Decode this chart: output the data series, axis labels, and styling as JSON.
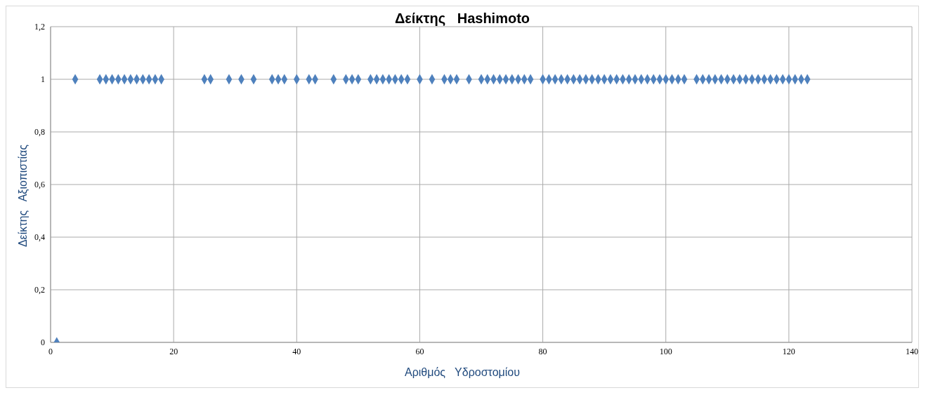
{
  "chart_data": {
    "type": "scatter",
    "title": "Δείκτης   Hashimoto",
    "xlabel": "Αριθμός   Υδροστομίου",
    "ylabel": "Δείκτης   Αξιοπιστίας",
    "x": [
      1,
      4,
      8,
      9,
      10,
      11,
      12,
      13,
      14,
      15,
      16,
      17,
      18,
      25,
      26,
      29,
      31,
      33,
      36,
      37,
      38,
      40,
      42,
      43,
      46,
      48,
      49,
      50,
      52,
      53,
      54,
      55,
      56,
      57,
      58,
      60,
      62,
      64,
      65,
      66,
      68,
      70,
      71,
      72,
      73,
      74,
      75,
      76,
      77,
      78,
      80,
      81,
      82,
      83,
      84,
      85,
      86,
      87,
      88,
      89,
      90,
      91,
      92,
      93,
      94,
      95,
      96,
      97,
      98,
      99,
      100,
      101,
      102,
      103,
      105,
      106,
      107,
      108,
      109,
      110,
      111,
      112,
      113,
      114,
      115,
      116,
      117,
      118,
      119,
      120,
      121,
      122,
      123
    ],
    "values": [
      0,
      1,
      1,
      1,
      1,
      1,
      1,
      1,
      1,
      1,
      1,
      1,
      1,
      1,
      1,
      1,
      1,
      1,
      1,
      1,
      1,
      1,
      1,
      1,
      1,
      1,
      1,
      1,
      1,
      1,
      1,
      1,
      1,
      1,
      1,
      1,
      1,
      1,
      1,
      1,
      1,
      1,
      1,
      1,
      1,
      1,
      1,
      1,
      1,
      1,
      1,
      1,
      1,
      1,
      1,
      1,
      1,
      1,
      1,
      1,
      1,
      1,
      1,
      1,
      1,
      1,
      1,
      1,
      1,
      1,
      1,
      1,
      1,
      1,
      1,
      1,
      1,
      1,
      1,
      1,
      1,
      1,
      1,
      1,
      1,
      1,
      1,
      1,
      1,
      1,
      1,
      1,
      1
    ],
    "color": "#4f81bd",
    "marker": "diamond",
    "grid": true,
    "legend": false,
    "xlim": [
      0,
      140
    ],
    "xticks": [
      0,
      20,
      40,
      60,
      80,
      100,
      120,
      140
    ],
    "ylim": [
      0,
      1.2
    ],
    "yticks": [
      0,
      {
        "value": 0.2,
        "label": "0,2"
      },
      {
        "value": 0.4,
        "label": "0,4"
      },
      {
        "value": 0.6,
        "label": "0,6"
      },
      {
        "value": 0.8,
        "label": "0,8"
      },
      1,
      {
        "value": 1.2,
        "label": "1,2"
      }
    ]
  }
}
